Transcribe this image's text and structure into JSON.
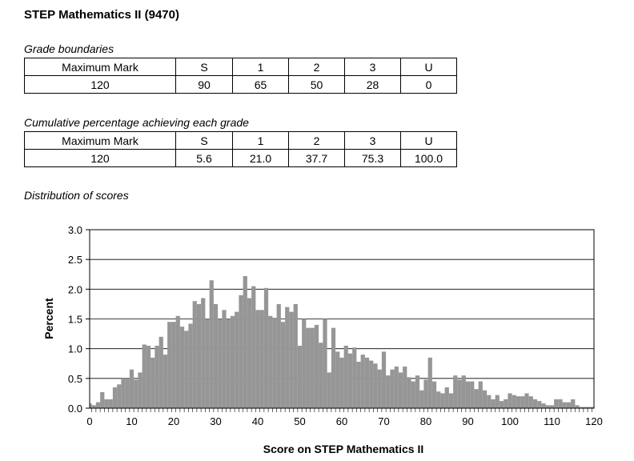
{
  "title": "STEP Mathematics II (9470)",
  "grade_boundaries": {
    "caption": "Grade boundaries",
    "headers": [
      "Maximum Mark",
      "S",
      "1",
      "2",
      "3",
      "U"
    ],
    "values": [
      "120",
      "90",
      "65",
      "50",
      "28",
      "0"
    ]
  },
  "cumulative": {
    "caption": "Cumulative percentage achieving each grade",
    "headers": [
      "Maximum Mark",
      "S",
      "1",
      "2",
      "3",
      "U"
    ],
    "values": [
      "120",
      "5.6",
      "21.0",
      "37.7",
      "75.3",
      "100.0"
    ]
  },
  "distribution_caption": "Distribution of scores",
  "chart_data": {
    "type": "bar",
    "xlabel": "Score on STEP Mathematics II",
    "ylabel": "Percent",
    "xlim": [
      0,
      120
    ],
    "ylim": [
      0,
      3.0
    ],
    "x_ticks": [
      "0",
      "10",
      "20",
      "30",
      "40",
      "50",
      "60",
      "70",
      "80",
      "90",
      "100",
      "110",
      "120"
    ],
    "y_ticks": [
      "0.0",
      "0.5",
      "1.0",
      "1.5",
      "2.0",
      "2.5",
      "3.0"
    ],
    "grid": "horizontal",
    "bar_color": "#969696",
    "x": [
      0,
      1,
      2,
      3,
      4,
      5,
      6,
      7,
      8,
      9,
      10,
      11,
      12,
      13,
      14,
      15,
      16,
      17,
      18,
      19,
      20,
      21,
      22,
      23,
      24,
      25,
      26,
      27,
      28,
      29,
      30,
      31,
      32,
      33,
      34,
      35,
      36,
      37,
      38,
      39,
      40,
      41,
      42,
      43,
      44,
      45,
      46,
      47,
      48,
      49,
      50,
      51,
      52,
      53,
      54,
      55,
      56,
      57,
      58,
      59,
      60,
      61,
      62,
      63,
      64,
      65,
      66,
      67,
      68,
      69,
      70,
      71,
      72,
      73,
      74,
      75,
      76,
      77,
      78,
      79,
      80,
      81,
      82,
      83,
      84,
      85,
      86,
      87,
      88,
      89,
      90,
      91,
      92,
      93,
      94,
      95,
      96,
      97,
      98,
      99,
      100,
      101,
      102,
      103,
      104,
      105,
      106,
      107,
      108,
      109,
      110,
      111,
      112,
      113,
      114,
      115,
      116,
      117,
      118,
      119,
      120
    ],
    "values": [
      0.08,
      0.05,
      0.1,
      0.27,
      0.15,
      0.15,
      0.35,
      0.4,
      0.5,
      0.5,
      0.65,
      0.48,
      0.6,
      1.07,
      1.05,
      0.85,
      1.05,
      1.2,
      0.9,
      1.45,
      1.45,
      1.55,
      1.37,
      1.3,
      1.42,
      1.8,
      1.75,
      1.85,
      1.5,
      2.15,
      1.75,
      1.5,
      1.65,
      1.5,
      1.55,
      1.62,
      1.9,
      2.22,
      1.85,
      2.05,
      1.65,
      1.65,
      2.02,
      1.55,
      1.52,
      1.75,
      1.45,
      1.7,
      1.62,
      1.75,
      1.05,
      1.5,
      1.35,
      1.35,
      1.4,
      1.1,
      1.5,
      0.6,
      1.35,
      0.95,
      0.85,
      1.05,
      0.92,
      1.02,
      0.78,
      0.9,
      0.85,
      0.8,
      0.75,
      0.65,
      0.95,
      0.55,
      0.65,
      0.7,
      0.6,
      0.7,
      0.52,
      0.45,
      0.55,
      0.3,
      0.48,
      0.85,
      0.45,
      0.28,
      0.25,
      0.35,
      0.25,
      0.55,
      0.48,
      0.55,
      0.45,
      0.45,
      0.32,
      0.45,
      0.3,
      0.22,
      0.15,
      0.22,
      0.12,
      0.15,
      0.25,
      0.22,
      0.2,
      0.2,
      0.25,
      0.2,
      0.15,
      0.12,
      0.08,
      0.05,
      0.05,
      0.15,
      0.15,
      0.1,
      0.1,
      0.15,
      0.05,
      0.02,
      0.02,
      0.02,
      0.02
    ]
  }
}
